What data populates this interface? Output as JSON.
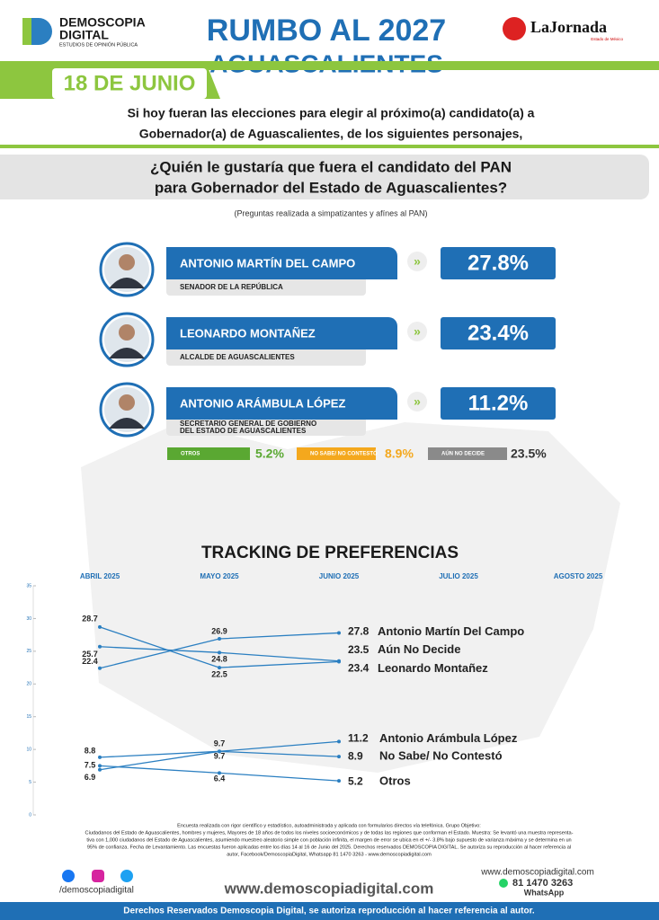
{
  "header": {
    "brand": "DEMOSCOPIA",
    "brand2": "DIGITAL",
    "brand_sub": "ESTUDIOS DE OPINIÓN PÚBLICA",
    "title": "RUMBO AL 2027",
    "subtitle": "AGUASCALIENTES",
    "partner": "LaJornada",
    "partner_sub": "Estado de México",
    "date": "18 DE JUNIO"
  },
  "intro": [
    "Si hoy fueran las elecciones para elegir al próximo(a) candidato(a) a",
    "Gobernador(a) de Aguascalientes, de los siguientes personajes,"
  ],
  "question": [
    "¿Quién le gustaría que fuera el candidato del PAN",
    "para Gobernador del Estado de Aguascalientes?"
  ],
  "note": "(Preguntas realizada a simpatizantes y afínes al PAN)",
  "candidates": [
    {
      "name": "ANTONIO MARTÍN DEL CAMPO",
      "role": [
        "SENADOR DE LA REPÚBLICA"
      ],
      "pct": "27.8%"
    },
    {
      "name": "LEONARDO MONTAÑEZ",
      "role": [
        "ALCALDE DE AGUASCALIENTES"
      ],
      "pct": "23.4%"
    },
    {
      "name": "ANTONIO ARÁMBULA LÓPEZ",
      "role": [
        "SECRETARIO GENERAL DE GOBIERNO",
        "DEL ESTADO DE AGUASCALIENTES"
      ],
      "pct": "11.2%"
    }
  ],
  "others": [
    {
      "label": "OTROS",
      "pct": "5.2%",
      "color": "#5aa832"
    },
    {
      "label": "NO SABE/ NO CONTESTÓ",
      "pct": "8.9%",
      "color": "#f4a81d"
    },
    {
      "label": "AÚN NO DECIDE",
      "pct": "23.5%",
      "color": "#8a8a8a"
    }
  ],
  "chart_data": {
    "type": "line",
    "title": "TRACKING DE PREFERENCIAS",
    "categories": [
      "ABRIL 2025",
      "MAYO 2025",
      "JUNIO 2025",
      "JULIO 2025",
      "AGOSTO 2025"
    ],
    "ylim": [
      0,
      35
    ],
    "yticks": [
      0,
      5,
      10,
      15,
      20,
      25,
      30,
      35
    ],
    "series": [
      {
        "name": "Antonio Martín Del Campo",
        "color": "#2b7fc1",
        "values": [
          22.4,
          26.9,
          27.8,
          null,
          null
        ]
      },
      {
        "name": "Aún No Decide",
        "color": "#2b7fc1",
        "values": [
          25.7,
          24.8,
          23.5,
          null,
          null
        ]
      },
      {
        "name": "Leonardo Montañez",
        "color": "#2b7fc1",
        "values": [
          28.7,
          22.5,
          23.4,
          null,
          null
        ]
      },
      {
        "name": "Antonio Arámbula López",
        "color": "#2b7fc1",
        "values": [
          6.9,
          9.7,
          11.2,
          null,
          null
        ]
      },
      {
        "name": "No Sabe/ No Contestó",
        "color": "#2b7fc1",
        "values": [
          8.8,
          9.7,
          8.9,
          null,
          null
        ]
      },
      {
        "name": "Otros",
        "color": "#2b7fc1",
        "values": [
          7.5,
          6.4,
          5.2,
          null,
          null
        ]
      }
    ]
  },
  "footer": {
    "method": [
      "Encuesta realizada con rigor científico y estadístico, autoadministrada y aplicada con formularios directos vía telefónica. Grupo Objetivo:",
      "Ciudadanos del Estado de Aguascalientes, hombres y mujeres, Mayores de 18 años de todos los niveles socioeconómicos y de todas las regiones que conforman el Estado. Muestra: Se levantó una muestra representa-",
      "tiva con 1,000 ciudadanos del Estado de Aguascalientes, asumiendo muestreo aleatorio simple con población infinita, el margen de error se ubica en el +/- 3.8% bajo supuesto de varianza máxima y se determina en un",
      "95% de confianza. Fecha de Levantamiento. Las encuestas fueron aplicadas entre los días 14 al 16 de Junio del 2025. Derechos reservados DEMOSCOPIA DIGITAL. Se autoriza su reproducción al hacer referencia al",
      "autor, Facebook/DemoscopiaDigital, Whatsapp 81 1470 3263 - www.demoscopiadigital.com"
    ],
    "social": "/demoscopiadigital",
    "site": "www.demoscopiadigital.com",
    "site_small": "www.demoscopiadigital.com",
    "phone": "81 1470 3263",
    "whatsapp": "WhatsApp",
    "rights": "Derechos Reservados Demoscopia Digital, se autoriza reproducción al hacer referencia al autor."
  }
}
